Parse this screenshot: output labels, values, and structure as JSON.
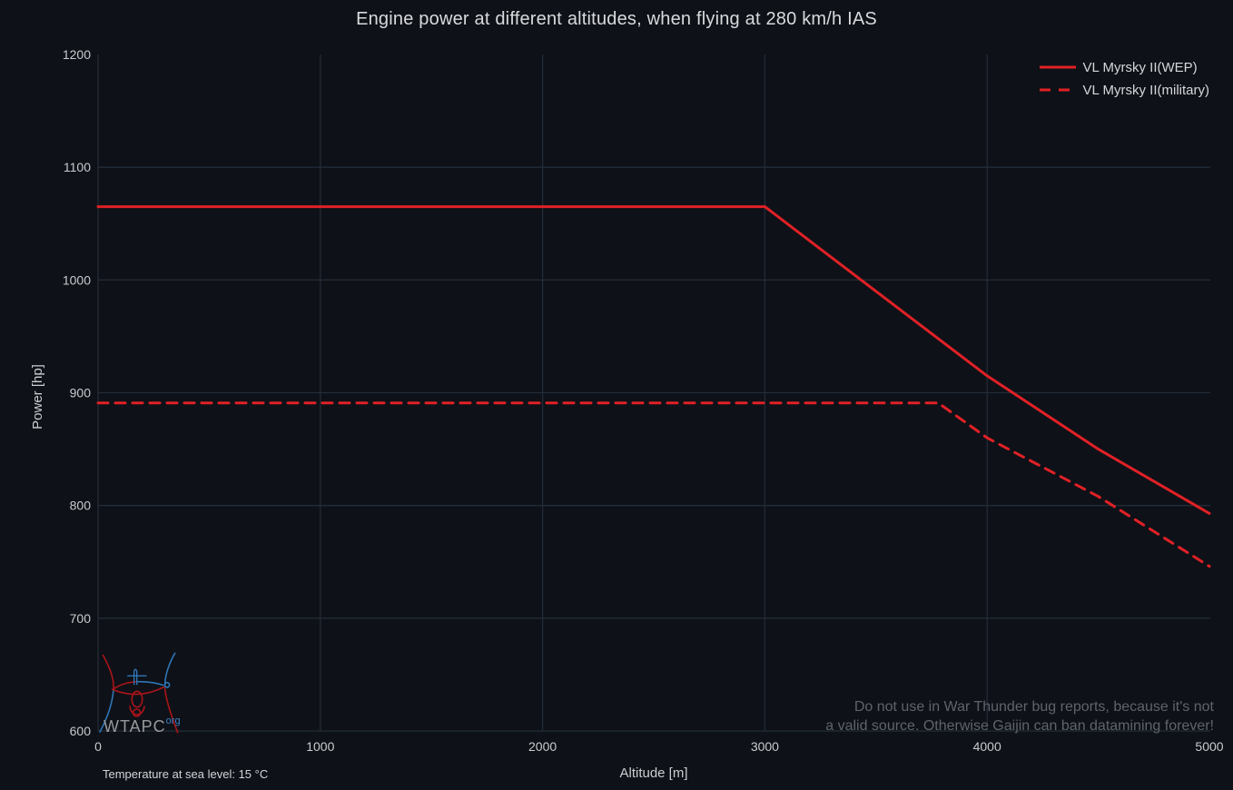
{
  "title": "Engine power at different altitudes, when flying at 280 km/h IAS",
  "legend": {
    "items": [
      {
        "label": "VL Myrsky II(WEP)",
        "line_style": "solid"
      },
      {
        "label": "VL Myrsky II(military)",
        "line_style": "dashed"
      }
    ]
  },
  "footnotes": {
    "temperature": "Temperature at sea level: 15 °C",
    "disclaimer_line1": "Do not use in War Thunder bug reports, because it's not",
    "disclaimer_line2": "a valid source. Otherwise Gaijin can ban datamining forever!"
  },
  "watermark": {
    "text": "WTAPC",
    "superscript": "org"
  },
  "colors": {
    "background": "#0e1117",
    "grid": "#232c38",
    "series_red": "#e02126",
    "title_text": "#d8dadd",
    "tick_text": "#c9cbce",
    "muted_text": "#5f646b",
    "watermark_gray": "#97999c",
    "watermark_blue": "#2e75b6",
    "watermark_red": "#aa1419"
  },
  "chart_data": {
    "type": "line",
    "title": "Engine power at different altitudes, when flying at 280 km/h IAS",
    "xlabel": "Altitude [m]",
    "ylabel": "Power [hp]",
    "xlim": [
      0,
      5000
    ],
    "ylim": [
      600,
      1200
    ],
    "x_ticks": [
      0,
      1000,
      2000,
      3000,
      4000,
      5000
    ],
    "y_ticks": [
      600,
      700,
      800,
      900,
      1000,
      1100,
      1200
    ],
    "grid": true,
    "legend_position": "top-right",
    "series": [
      {
        "name": "VL Myrsky II(WEP)",
        "style": "solid",
        "color": "#e02126",
        "points": [
          [
            0,
            1065
          ],
          [
            500,
            1065
          ],
          [
            1000,
            1065
          ],
          [
            1500,
            1065
          ],
          [
            2000,
            1065
          ],
          [
            2500,
            1065
          ],
          [
            3000,
            1065
          ],
          [
            3500,
            990
          ],
          [
            4000,
            915
          ],
          [
            4500,
            850
          ],
          [
            5000,
            793
          ]
        ]
      },
      {
        "name": "VL Myrsky II(military)",
        "style": "dashed",
        "color": "#e02126",
        "points": [
          [
            0,
            891
          ],
          [
            500,
            891
          ],
          [
            1000,
            891
          ],
          [
            1500,
            891
          ],
          [
            2000,
            891
          ],
          [
            2500,
            891
          ],
          [
            3000,
            891
          ],
          [
            3500,
            891
          ],
          [
            3780,
            891
          ],
          [
            4000,
            860
          ],
          [
            4500,
            808
          ],
          [
            5000,
            746
          ]
        ]
      }
    ]
  }
}
